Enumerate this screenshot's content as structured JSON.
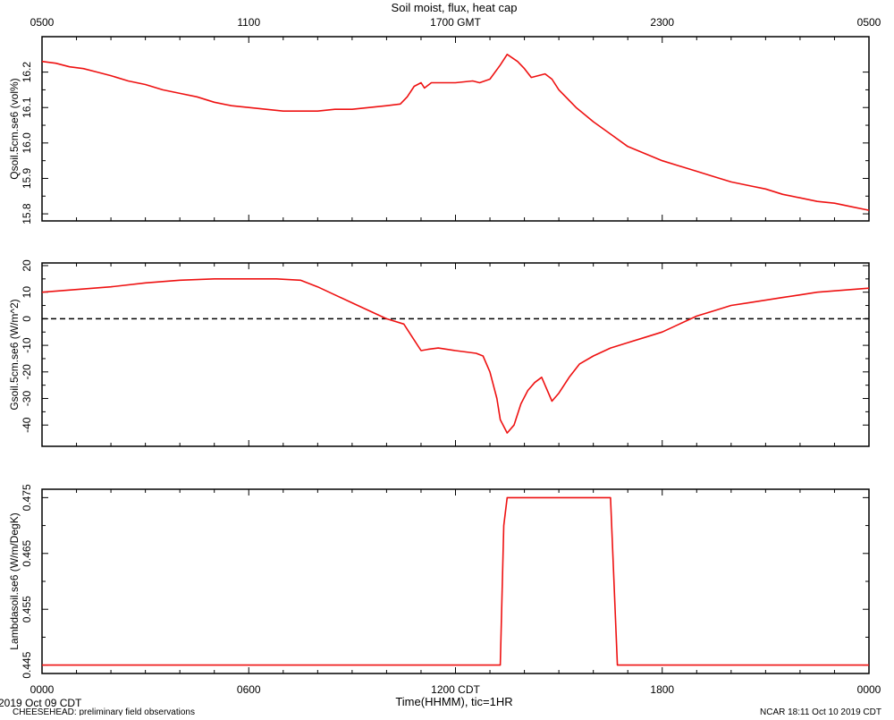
{
  "title": "Soil moist, flux, heat cap",
  "top_axis": {
    "ticks": [
      "0500",
      "1100",
      "1700 GMT",
      "2300",
      "0500"
    ]
  },
  "bottom_axis": {
    "ticks": [
      "0000",
      "0600",
      "1200 CDT",
      "1800",
      "0000"
    ],
    "label": "Time(HHMM), tic=1HR"
  },
  "footer": {
    "date": "2019 Oct 09 CDT",
    "project": "CHEESEHEAD: preliminary field observations",
    "stamp": "NCAR 18:11 Oct 10 2019 CDT"
  },
  "colors": {
    "series": "#ee1111",
    "axis": "#000000",
    "zero_line": "#000000"
  },
  "chart_data": [
    {
      "type": "line",
      "ylabel": "Qsoil.5cm.se6 (vol%)",
      "ylim": [
        15.78,
        16.3
      ],
      "yticks": [
        "15.8",
        "15.9",
        "16.0",
        "16.1",
        "16.2"
      ],
      "xlim": [
        0,
        24
      ],
      "series": [
        {
          "x": [
            0,
            0.4,
            0.8,
            1.2,
            1.6,
            2.0,
            2.5,
            3.0,
            3.5,
            4.0,
            4.5,
            5.0,
            5.5,
            6.0,
            6.5,
            7.0,
            7.5,
            8.0,
            8.5,
            9.0,
            9.5,
            10.0,
            10.4,
            10.6,
            10.8,
            11.0,
            11.1,
            11.3,
            11.5,
            12.0,
            12.5,
            12.7,
            13.0,
            13.3,
            13.5,
            13.8,
            14.0,
            14.2,
            14.4,
            14.6,
            14.8,
            15.0,
            15.5,
            16.0,
            16.5,
            17.0,
            17.5,
            18.0,
            18.5,
            19.0,
            19.5,
            20.0,
            20.5,
            21.0,
            21.5,
            22.0,
            22.5,
            23.0,
            23.5,
            24.0
          ],
          "values": [
            16.23,
            16.225,
            16.215,
            16.21,
            16.2,
            16.19,
            16.175,
            16.165,
            16.15,
            16.14,
            16.13,
            16.115,
            16.105,
            16.1,
            16.095,
            16.09,
            16.09,
            16.09,
            16.095,
            16.095,
            16.1,
            16.105,
            16.11,
            16.13,
            16.16,
            16.17,
            16.155,
            16.17,
            16.17,
            16.17,
            16.175,
            16.17,
            16.18,
            16.22,
            16.25,
            16.23,
            16.21,
            16.185,
            16.19,
            16.195,
            16.18,
            16.15,
            16.1,
            16.06,
            16.025,
            15.99,
            15.97,
            15.95,
            15.935,
            15.92,
            15.905,
            15.89,
            15.88,
            15.87,
            15.855,
            15.845,
            15.835,
            15.83,
            15.82,
            15.81
          ]
        }
      ]
    },
    {
      "type": "line",
      "ylabel": "Gsoil.5cm.se6 (W/m^2)",
      "ylim": [
        -48,
        21
      ],
      "yticks": [
        "-40",
        "-30",
        "-20",
        "-10",
        "0",
        "10",
        "20"
      ],
      "xlim": [
        0,
        24
      ],
      "zero_line": 0,
      "series": [
        {
          "x": [
            0,
            1,
            2,
            3,
            4,
            5,
            6,
            6.8,
            7.5,
            8,
            8.5,
            9,
            9.5,
            10,
            10.5,
            10.8,
            11,
            11.2,
            11.5,
            12,
            12.3,
            12.6,
            12.8,
            13,
            13.2,
            13.3,
            13.5,
            13.7,
            13.9,
            14.1,
            14.3,
            14.5,
            14.6,
            14.8,
            15.0,
            15.3,
            15.6,
            16,
            16.5,
            17,
            17.5,
            18,
            18.5,
            19,
            19.5,
            20,
            20.5,
            21,
            21.5,
            22,
            22.5,
            23,
            23.5,
            24
          ],
          "values": [
            10,
            11,
            12,
            13.5,
            14.5,
            15,
            15,
            15,
            14.5,
            12,
            9,
            6,
            3,
            0,
            -2,
            -8,
            -12,
            -11.5,
            -11,
            -12,
            -12.5,
            -13,
            -14,
            -20,
            -30,
            -38,
            -43,
            -40,
            -32,
            -27,
            -24,
            -22,
            -25,
            -31,
            -28,
            -22,
            -17,
            -14,
            -11,
            -9,
            -7,
            -5,
            -2,
            1,
            3,
            5,
            6,
            7,
            8,
            9,
            10,
            10.5,
            11,
            11.5
          ]
        }
      ]
    },
    {
      "type": "line",
      "ylabel": "Lambdasoil.se6 (W/m/DegK)",
      "ylim": [
        0.4435,
        0.4765
      ],
      "yticks": [
        "0.445",
        "0.455",
        "0.465",
        "0.475"
      ],
      "xlim": [
        0,
        24
      ],
      "series": [
        {
          "x": [
            0,
            13.3,
            13.4,
            13.5,
            16.5,
            16.7,
            24
          ],
          "values": [
            0.445,
            0.445,
            0.47,
            0.475,
            0.475,
            0.445,
            0.445
          ]
        }
      ]
    }
  ]
}
